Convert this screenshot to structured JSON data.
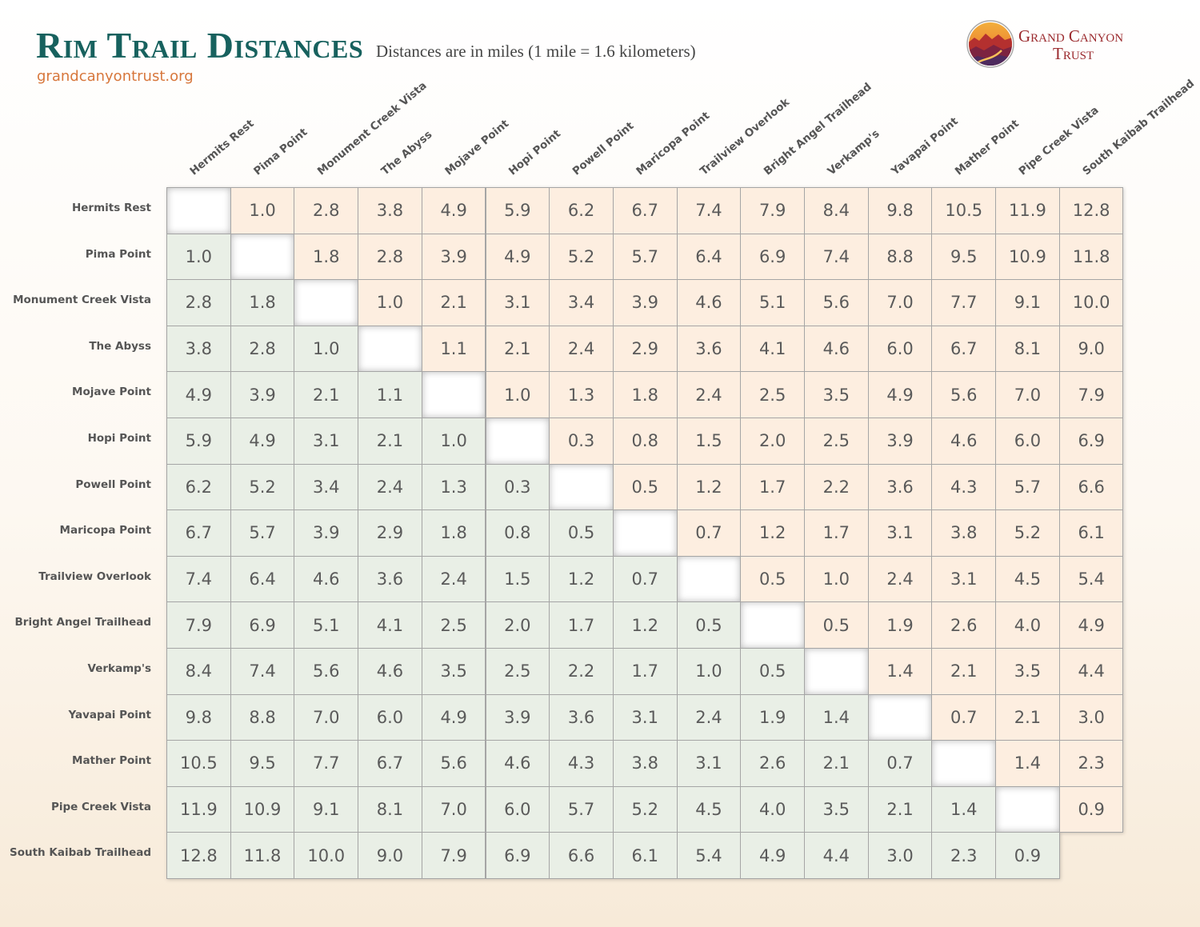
{
  "header": {
    "title": "Rim Trail Distances",
    "subtitle": "Distances are in miles (1 mile = 1.6 kilometers)",
    "website": "grandcanyontrust.org"
  },
  "logo": {
    "line1": "Grand Canyon",
    "line2": "Trust",
    "icon": "canyon-logo-icon"
  },
  "colors": {
    "title": "#17615e",
    "upper_cells": "#fdeee0",
    "lower_cells": "#e9efe6",
    "website": "#d7773c",
    "logo_text": "#9b2a2e"
  },
  "chart_data": {
    "type": "table",
    "title": "Rim Trail Distances",
    "unit": "miles",
    "locations": [
      "Hermits Rest",
      "Pima Point",
      "Monument Creek Vista",
      "The Abyss",
      "Mojave Point",
      "Hopi Point",
      "Powell Point",
      "Maricopa Point",
      "Trailview Overlook",
      "Bright Angel Trailhead",
      "Verkamp's",
      "Yavapai Point",
      "Mather Point",
      "Pipe Creek Vista",
      "South Kaibab Trailhead"
    ],
    "matrix": [
      [
        null,
        1.0,
        2.8,
        3.8,
        4.9,
        5.9,
        6.2,
        6.7,
        7.4,
        7.9,
        8.4,
        9.8,
        10.5,
        11.9,
        12.8
      ],
      [
        1.0,
        null,
        1.8,
        2.8,
        3.9,
        4.9,
        5.2,
        5.7,
        6.4,
        6.9,
        7.4,
        8.8,
        9.5,
        10.9,
        11.8
      ],
      [
        2.8,
        1.8,
        null,
        1.0,
        2.1,
        3.1,
        3.4,
        3.9,
        4.6,
        5.1,
        5.6,
        7.0,
        7.7,
        9.1,
        10.0
      ],
      [
        3.8,
        2.8,
        1.0,
        null,
        1.1,
        2.1,
        2.4,
        2.9,
        3.6,
        4.1,
        4.6,
        6.0,
        6.7,
        8.1,
        9.0
      ],
      [
        4.9,
        3.9,
        2.1,
        1.1,
        null,
        1.0,
        1.3,
        1.8,
        2.4,
        2.5,
        3.5,
        4.9,
        5.6,
        7.0,
        7.9
      ],
      [
        5.9,
        4.9,
        3.1,
        2.1,
        1.0,
        null,
        0.3,
        0.8,
        1.5,
        2.0,
        2.5,
        3.9,
        4.6,
        6.0,
        6.9
      ],
      [
        6.2,
        5.2,
        3.4,
        2.4,
        1.3,
        0.3,
        null,
        0.5,
        1.2,
        1.7,
        2.2,
        3.6,
        4.3,
        5.7,
        6.6
      ],
      [
        6.7,
        5.7,
        3.9,
        2.9,
        1.8,
        0.8,
        0.5,
        null,
        0.7,
        1.2,
        1.7,
        3.1,
        3.8,
        5.2,
        6.1
      ],
      [
        7.4,
        6.4,
        4.6,
        3.6,
        2.4,
        1.5,
        1.2,
        0.7,
        null,
        0.5,
        1.0,
        2.4,
        3.1,
        4.5,
        5.4
      ],
      [
        7.9,
        6.9,
        5.1,
        4.1,
        2.5,
        2.0,
        1.7,
        1.2,
        0.5,
        null,
        0.5,
        1.9,
        2.6,
        4.0,
        4.9
      ],
      [
        8.4,
        7.4,
        5.6,
        4.6,
        3.5,
        2.5,
        2.2,
        1.7,
        1.0,
        0.5,
        null,
        1.4,
        2.1,
        3.5,
        4.4
      ],
      [
        9.8,
        8.8,
        7.0,
        6.0,
        4.9,
        3.9,
        3.6,
        3.1,
        2.4,
        1.9,
        1.4,
        null,
        0.7,
        2.1,
        3.0
      ],
      [
        10.5,
        9.5,
        7.7,
        6.7,
        5.6,
        4.6,
        4.3,
        3.8,
        3.1,
        2.6,
        2.1,
        0.7,
        null,
        1.4,
        2.3
      ],
      [
        11.9,
        10.9,
        9.1,
        8.1,
        7.0,
        6.0,
        5.7,
        5.2,
        4.5,
        4.0,
        3.5,
        2.1,
        1.4,
        null,
        0.9
      ],
      [
        12.8,
        11.8,
        10.0,
        9.0,
        7.9,
        6.9,
        6.6,
        6.1,
        5.4,
        4.9,
        4.4,
        3.0,
        2.3,
        0.9,
        null
      ]
    ]
  }
}
